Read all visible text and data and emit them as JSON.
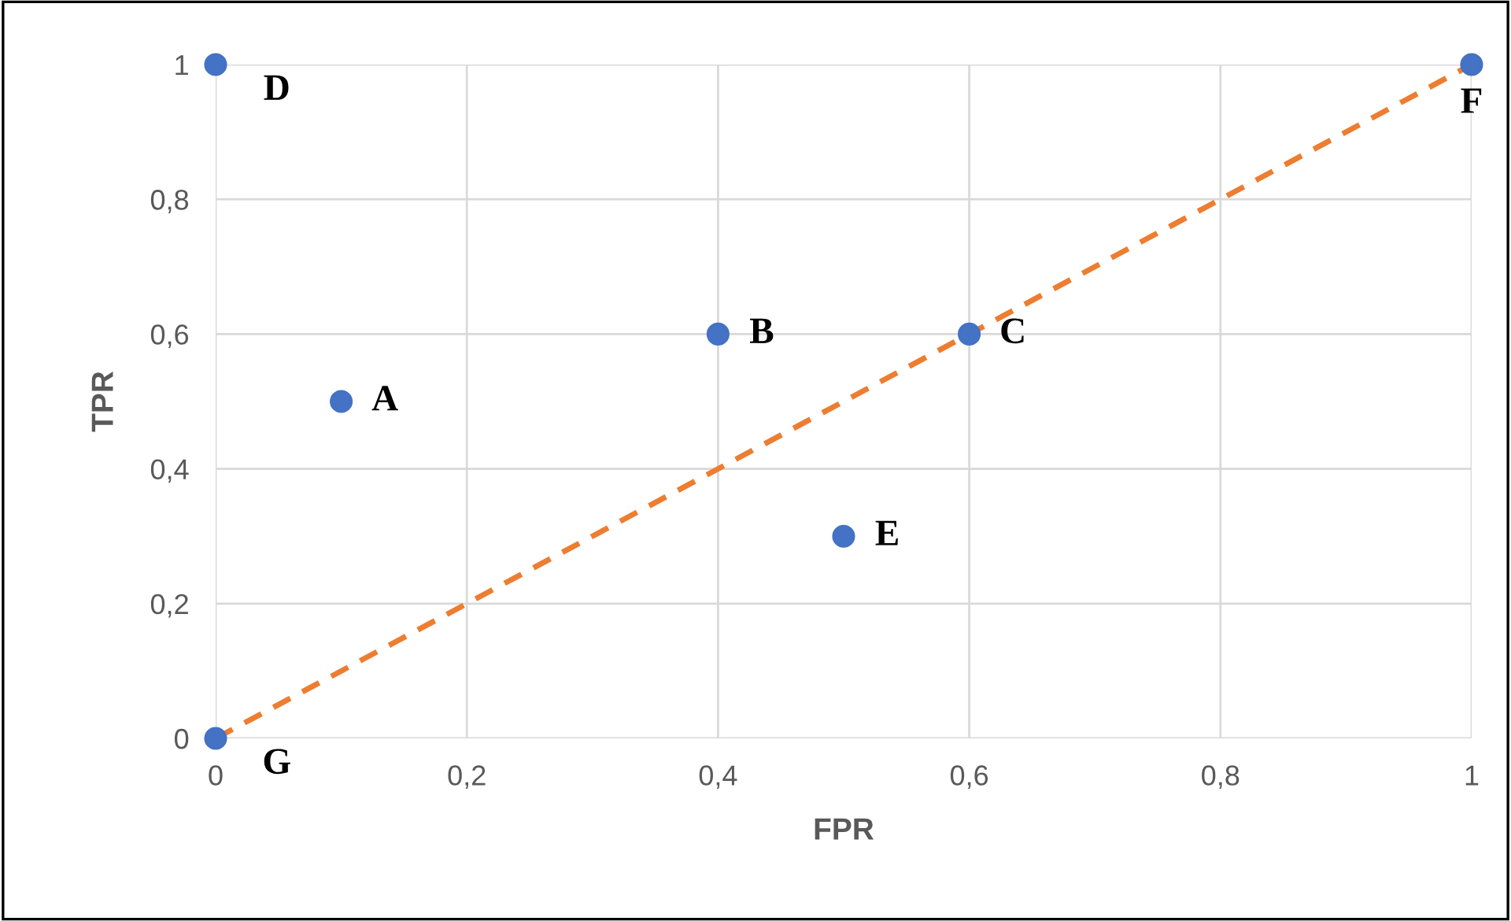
{
  "chart_data": {
    "type": "scatter",
    "xlabel": "FPR",
    "ylabel": "TPR",
    "xlim": [
      0,
      1
    ],
    "ylim": [
      0,
      1
    ],
    "xticks": [
      0,
      {
        "value": 0.2,
        "label": "0,2"
      },
      {
        "value": 0.4,
        "label": "0,4"
      },
      {
        "value": 0.6,
        "label": "0,6"
      },
      {
        "value": 0.8,
        "label": "0,8"
      },
      1
    ],
    "yticks": [
      0,
      {
        "value": 0.2,
        "label": "0,2"
      },
      {
        "value": 0.4,
        "label": "0,4"
      },
      {
        "value": 0.6,
        "label": "0,6"
      },
      {
        "value": 0.8,
        "label": "0,8"
      },
      1
    ],
    "grid": true,
    "legend": false,
    "series": [
      {
        "color": "#4472c4",
        "marker": "circle",
        "x": [
          0.1,
          0.4,
          0.6,
          0,
          0.5,
          1,
          0
        ],
        "values": [
          0.5,
          0.6,
          0.6,
          1,
          0.3,
          1,
          0
        ]
      },
      {
        "type": "line",
        "color": "#ed7d31",
        "marker": "none",
        "line_style": "dashed",
        "x": [
          0,
          1
        ],
        "values": [
          0,
          1
        ]
      }
    ],
    "annotations": [
      {
        "text": "A",
        "x": 0.1,
        "y": 0.5
      },
      {
        "text": "B",
        "x": 0.4,
        "y": 0.6
      },
      {
        "text": "C",
        "x": 0.6,
        "y": 0.6
      },
      {
        "text": "D",
        "x": 0,
        "y": 1
      },
      {
        "text": "E",
        "x": 0.5,
        "y": 0.3
      },
      {
        "text": "F",
        "x": 1,
        "y": 1
      },
      {
        "text": "G",
        "x": 0,
        "y": 0
      }
    ]
  }
}
